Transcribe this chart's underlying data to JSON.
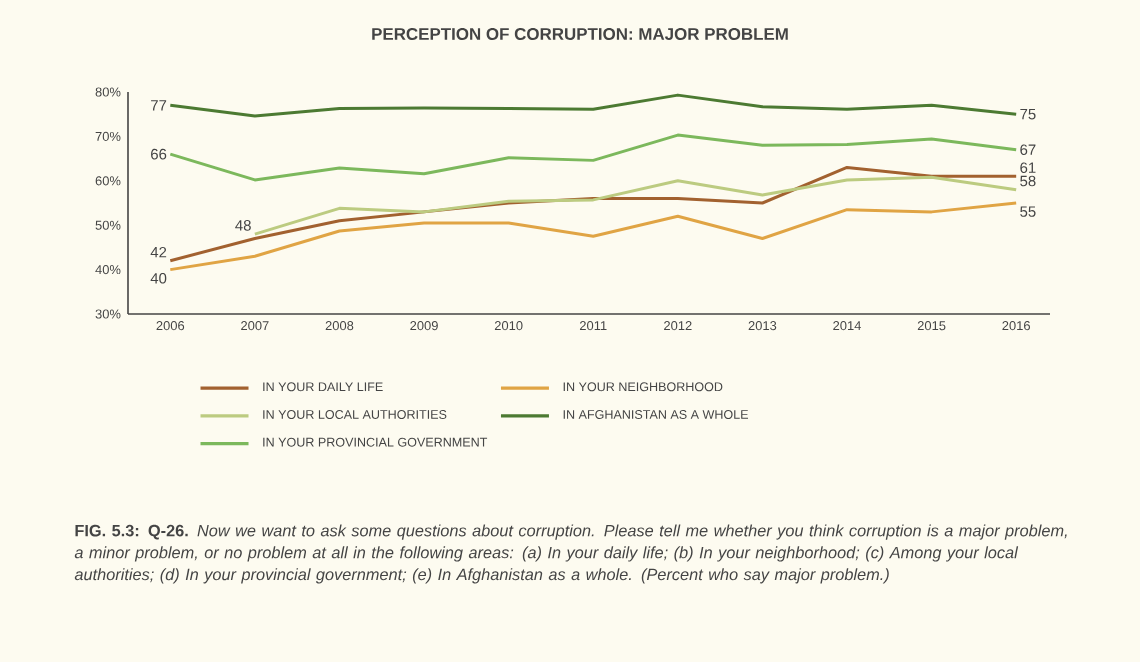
{
  "chart_data": {
    "type": "line",
    "title": "PERCEPTION OF CORRUPTION: MAJOR PROBLEM",
    "x": [
      2006,
      2007,
      2008,
      2009,
      2010,
      2011,
      2012,
      2013,
      2014,
      2015,
      2016
    ],
    "xlim": [
      2005.5,
      2016.4
    ],
    "xticks": [
      2006,
      2007,
      2008,
      2009,
      2010,
      2011,
      2012,
      2013,
      2014,
      2015,
      2016
    ],
    "ylim": [
      30,
      80
    ],
    "yticks": [
      {
        "value": 30,
        "label": "30%"
      },
      {
        "value": 40,
        "label": "40%"
      },
      {
        "value": 50,
        "label": "50%"
      },
      {
        "value": 60,
        "label": "60%"
      },
      {
        "value": 70,
        "label": "70%"
      },
      {
        "value": 80,
        "label": "80%"
      }
    ],
    "legend": "bottom",
    "series": [
      {
        "name": "IN YOUR DAILY LIFE",
        "color": "#a2612f",
        "values": [
          42,
          47,
          51,
          53,
          55,
          56,
          56,
          55,
          63,
          61,
          61
        ],
        "value_labels": [
          "42",
          null,
          null,
          null,
          null,
          null,
          null,
          null,
          null,
          null,
          "61"
        ]
      },
      {
        "name": "IN YOUR NEIGHBORHOOD",
        "color": "#e0a444",
        "values": [
          40,
          43,
          48.7,
          50.5,
          50.5,
          47.5,
          52,
          47,
          53.5,
          53,
          55
        ],
        "value_labels": [
          "40",
          null,
          null,
          null,
          null,
          null,
          null,
          null,
          null,
          null,
          "55"
        ]
      },
      {
        "name": "IN YOUR LOCAL AUTHORITIES",
        "color": "#bccb80",
        "values": [
          null,
          48,
          53.8,
          53,
          55.4,
          55.7,
          60,
          56.8,
          60.2,
          60.8,
          58
        ],
        "value_labels": [
          null,
          "48",
          null,
          null,
          null,
          null,
          null,
          null,
          null,
          null,
          "58"
        ]
      },
      {
        "name": "IN AFGHANISTAN AS A WHOLE",
        "color": "#4c7a32",
        "values": [
          77,
          74.6,
          76.3,
          76.4,
          76.3,
          76.1,
          79.3,
          76.7,
          76.1,
          77,
          75
        ],
        "value_labels": [
          "77",
          null,
          null,
          null,
          null,
          null,
          null,
          null,
          null,
          null,
          "75"
        ]
      },
      {
        "name": "IN YOUR PROVINCIAL GOVERNMENT",
        "color": "#7cb85c",
        "values": [
          66,
          60.2,
          62.9,
          61.6,
          65.2,
          64.6,
          70.3,
          68,
          68.2,
          69.4,
          67
        ],
        "value_labels": [
          "66",
          null,
          null,
          null,
          null,
          null,
          null,
          null,
          null,
          null,
          "67"
        ]
      }
    ],
    "annotations": [
      "**FIG. 5.3: Q-26.** *Now we want to ask some questions about corruption. Please tell me whether you think corruption is a major problem, a minor problem, or no problem at all in the following areas: (a) In your daily life; (b) In your neighborhood; (c) Among your local authorities; (d) In your provincial government; (e) In Afghanistan as a whole. (Percent who say major problem.)*"
    ]
  }
}
